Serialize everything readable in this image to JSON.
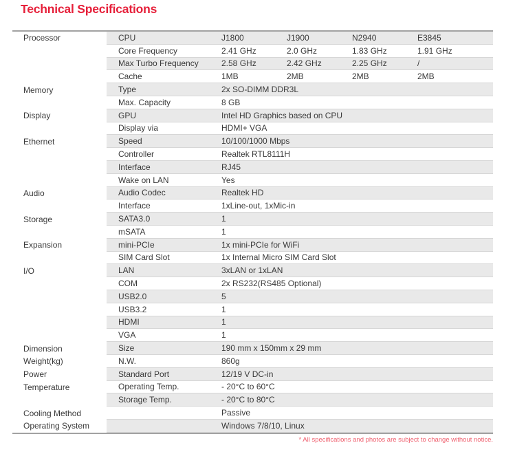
{
  "theme": {
    "accent_color": "#e6203a",
    "footnote_color": "#ef5e6d",
    "shaded_row_color": "#e9e9e9"
  },
  "page": {
    "title": "Technical Specifications",
    "footnote": "* All specifications and photos are subject to change without notice."
  },
  "table": {
    "sections": [
      {
        "category": "Processor",
        "rows": [
          {
            "label": "CPU",
            "values": [
              "J1800",
              "J1900",
              "N2940",
              "E3845"
            ]
          },
          {
            "label": "Core Frequency",
            "values": [
              "2.41 GHz",
              "2.0 GHz",
              "1.83 GHz",
              "1.91 GHz"
            ]
          },
          {
            "label": "Max Turbo Frequency",
            "values": [
              "2.58 GHz",
              "2.42 GHz",
              "2.25 GHz",
              "/"
            ]
          },
          {
            "label": "Cache",
            "values": [
              "1MB",
              "2MB",
              "2MB",
              "2MB"
            ]
          }
        ]
      },
      {
        "category": "Memory",
        "rows": [
          {
            "label": "Type",
            "values": [
              "2x SO-DIMM DDR3L"
            ]
          },
          {
            "label": "Max. Capacity",
            "values": [
              "8 GB"
            ]
          }
        ]
      },
      {
        "category": "Display",
        "rows": [
          {
            "label": "GPU",
            "values": [
              "Intel HD Graphics based on CPU"
            ]
          },
          {
            "label": "Display via",
            "values": [
              "HDMI+ VGA"
            ]
          }
        ]
      },
      {
        "category": "Ethernet",
        "rows": [
          {
            "label": "Speed",
            "values": [
              "10/100/1000 Mbps"
            ]
          },
          {
            "label": "Controller",
            "values": [
              "Realtek RTL8111H"
            ]
          },
          {
            "label": "Interface",
            "values": [
              "RJ45"
            ]
          },
          {
            "label": "Wake on LAN",
            "values": [
              "Yes"
            ]
          }
        ]
      },
      {
        "category": "Audio",
        "rows": [
          {
            "label": "Audio Codec",
            "values": [
              "Realtek HD"
            ]
          },
          {
            "label": "Interface",
            "values": [
              "1xLine-out, 1xMic-in"
            ]
          }
        ]
      },
      {
        "category": "Storage",
        "rows": [
          {
            "label": "SATA3.0",
            "values": [
              "1"
            ]
          },
          {
            "label": "mSATA",
            "values": [
              "1"
            ]
          }
        ]
      },
      {
        "category": "Expansion",
        "rows": [
          {
            "label": "mini-PCIe",
            "values": [
              "1x mini-PCIe for WiFi"
            ]
          },
          {
            "label": "SIM Card Slot",
            "values": [
              "1x Internal Micro SIM Card Slot"
            ]
          }
        ]
      },
      {
        "category": "I/O",
        "rows": [
          {
            "label": "LAN",
            "values": [
              "3xLAN or 1xLAN"
            ]
          },
          {
            "label": "COM",
            "values": [
              "2x RS232(RS485 Optional)"
            ]
          },
          {
            "label": "USB2.0",
            "values": [
              "5"
            ]
          },
          {
            "label": "USB3.2",
            "values": [
              "1"
            ]
          },
          {
            "label": "HDMI",
            "values": [
              "1"
            ]
          },
          {
            "label": "VGA",
            "values": [
              "1"
            ]
          }
        ]
      },
      {
        "category": "Dimension",
        "rows": [
          {
            "label": "Size",
            "values": [
              "190 mm x 150mm x 29 mm"
            ]
          }
        ]
      },
      {
        "category": "Weight(kg)",
        "rows": [
          {
            "label": "N.W.",
            "values": [
              "860g"
            ]
          }
        ]
      },
      {
        "category": "Power",
        "rows": [
          {
            "label": "Standard Port",
            "values": [
              "12/19 V DC-in"
            ]
          }
        ]
      },
      {
        "category": "Temperature",
        "rows": [
          {
            "label": "Operating Temp.",
            "values": [
              "- 20°C to 60°C"
            ]
          },
          {
            "label": "Storage Temp.",
            "values": [
              "- 20°C to 80°C"
            ]
          }
        ]
      },
      {
        "category": "Cooling Method",
        "rows": [
          {
            "label": "",
            "values": [
              "Passive"
            ]
          }
        ]
      },
      {
        "category": "Operating System",
        "rows": [
          {
            "label": "",
            "values": [
              "Windows 7/8/10, Linux"
            ]
          }
        ]
      }
    ]
  }
}
